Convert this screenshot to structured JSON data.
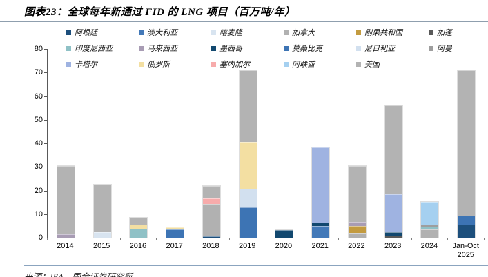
{
  "page": {
    "title": "图表23：全球每年新通过 FID 的 LNG 项目（百万吨/年）",
    "source": "来源：IEA，国金证券研究所"
  },
  "chart_data": {
    "type": "bar",
    "stacked": true,
    "title": "全球每年新通过 FID 的 LNG 项目（百万吨/年）",
    "xlabel": "",
    "ylabel": "",
    "unit": "百万吨/年",
    "ylim": [
      0,
      80
    ],
    "yticks": [
      0,
      10,
      20,
      30,
      40,
      50,
      60,
      70,
      80
    ],
    "grid": false,
    "legend_position": "top",
    "legend_order": [
      "阿根廷",
      "澳大利亚",
      "喀麦隆",
      "加拿大",
      "刚果共和国",
      "加蓬",
      "印度尼西亚",
      "马来西亚",
      "墨西哥",
      "莫桑比克",
      "尼日利亚",
      "阿曼",
      "卡塔尔",
      "俄罗斯",
      "塞内加尔",
      "阿联酋",
      "美国"
    ],
    "colors": {
      "阿根廷": "#1d4f7c",
      "澳大利亚": "#4379b8",
      "喀麦隆": "#d8e4f0",
      "加拿大": "#b1b1b1",
      "刚果共和国": "#c39b40",
      "加蓬": "#595959",
      "印度尼西亚": "#8fc1c6",
      "马来西亚": "#a89cb4",
      "墨西哥": "#12486f",
      "莫桑比克": "#3d74b4",
      "尼日利亚": "#d2e0ef",
      "阿曼": "#9e9e9e",
      "卡塔尔": "#9fb3e1",
      "俄罗斯": "#f3dfa2",
      "塞内加尔": "#f7abab",
      "阿联酋": "#a5d0f0",
      "美国": "#b3b3b3"
    },
    "categories": [
      "2014",
      "2015",
      "2016",
      "2017",
      "2018",
      "2019",
      "2020",
      "2021",
      "2022",
      "2023",
      "2024",
      "Jan-Oct\n2025"
    ],
    "bars": [
      {
        "label": "2014",
        "total": 30.3,
        "segments": [
          {
            "country": "马来西亚",
            "value": 1.5
          },
          {
            "country": "美国",
            "value": 28.8
          }
        ]
      },
      {
        "label": "2015",
        "total": 22.5,
        "segments": [
          {
            "country": "喀麦隆",
            "value": 2.4
          },
          {
            "country": "美国",
            "value": 20.1
          }
        ]
      },
      {
        "label": "2016",
        "total": 8.5,
        "segments": [
          {
            "country": "印度尼西亚",
            "value": 3.8
          },
          {
            "country": "俄罗斯",
            "value": 1.8
          },
          {
            "country": "美国",
            "value": 2.9
          }
        ]
      },
      {
        "label": "2017",
        "total": 4.4,
        "segments": [
          {
            "country": "莫桑比克",
            "value": 3.4
          },
          {
            "country": "俄罗斯",
            "value": 1.0
          }
        ]
      },
      {
        "label": "2018",
        "total": 22.0,
        "segments": [
          {
            "country": "阿根廷",
            "value": 0.5
          },
          {
            "country": "加拿大",
            "value": 13.7
          },
          {
            "country": "塞内加尔",
            "value": 2.6
          },
          {
            "country": "美国",
            "value": 5.2
          }
        ]
      },
      {
        "label": "2019",
        "total": 71.0,
        "segments": [
          {
            "country": "莫桑比克",
            "value": 12.8
          },
          {
            "country": "尼日利亚",
            "value": 8.0
          },
          {
            "country": "俄罗斯",
            "value": 19.9
          },
          {
            "country": "美国",
            "value": 30.3
          }
        ]
      },
      {
        "label": "2020",
        "total": 3.3,
        "segments": [
          {
            "country": "墨西哥",
            "value": 3.3
          }
        ]
      },
      {
        "label": "2021",
        "total": 38.4,
        "segments": [
          {
            "country": "澳大利亚",
            "value": 5.0
          },
          {
            "country": "墨西哥",
            "value": 1.4
          },
          {
            "country": "卡塔尔",
            "value": 32.0
          }
        ]
      },
      {
        "label": "2022",
        "total": 30.5,
        "segments": [
          {
            "country": "加拿大",
            "value": 2.0
          },
          {
            "country": "刚果共和国",
            "value": 3.0
          },
          {
            "country": "马来西亚",
            "value": 1.8
          },
          {
            "country": "美国",
            "value": 23.7
          }
        ]
      },
      {
        "label": "2023",
        "total": 56.0,
        "segments": [
          {
            "country": "加蓬",
            "value": 0.9
          },
          {
            "country": "墨西哥",
            "value": 1.4
          },
          {
            "country": "卡塔尔",
            "value": 16.0
          },
          {
            "country": "美国",
            "value": 37.7
          }
        ]
      },
      {
        "label": "2024",
        "total": 15.2,
        "segments": [
          {
            "country": "加拿大",
            "value": 3.4
          },
          {
            "country": "印度尼西亚",
            "value": 1.2
          },
          {
            "country": "阿曼",
            "value": 0.9
          },
          {
            "country": "阿联酋",
            "value": 9.7
          }
        ]
      },
      {
        "label": "Jan-Oct\n2025",
        "total": 71.0,
        "segments": [
          {
            "country": "阿根廷",
            "value": 5.5
          },
          {
            "country": "莫桑比克",
            "value": 4.0
          },
          {
            "country": "美国",
            "value": 61.5
          }
        ]
      }
    ]
  }
}
